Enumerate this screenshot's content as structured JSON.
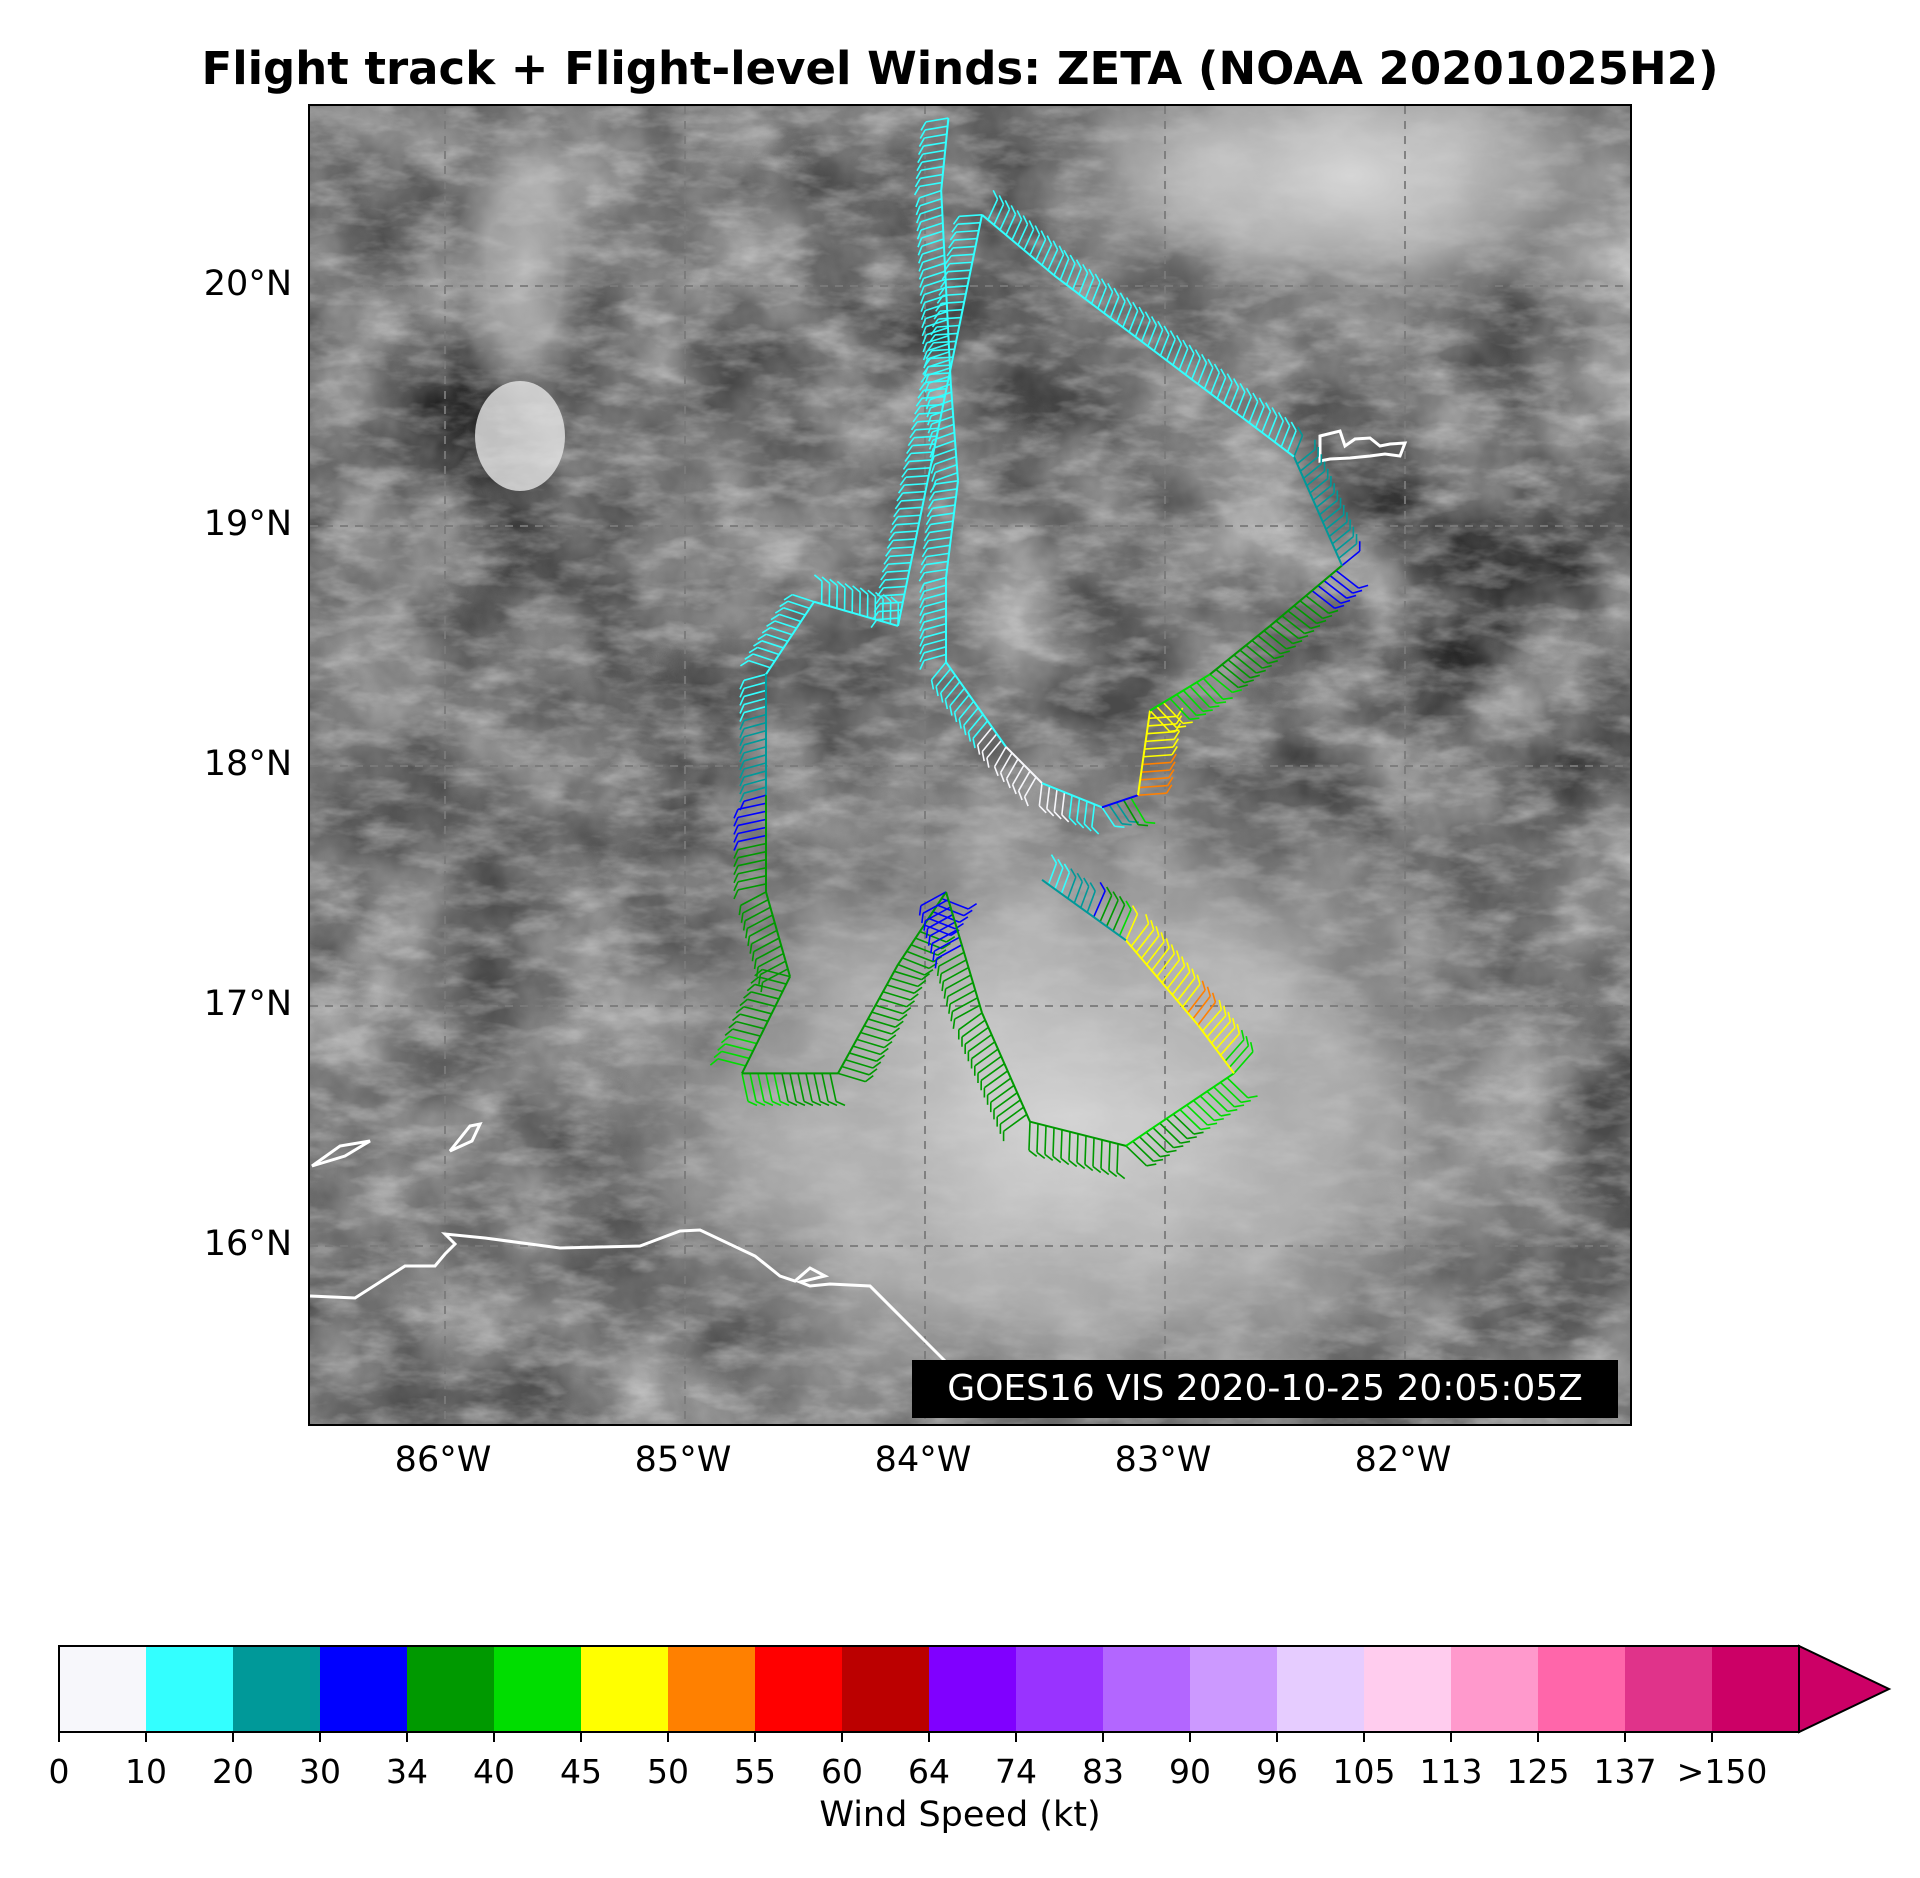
{
  "title": "Flight track + Flight-level Winds: ZETA (NOAA 20201025H2)",
  "map": {
    "lat_labels": [
      "20°N",
      "19°N",
      "18°N",
      "17°N",
      "16°N"
    ],
    "lon_labels": [
      "86°W",
      "85°W",
      "84°W",
      "83°W",
      "82°W"
    ],
    "stamp": "GOES16 VIS 2020-10-25 20:05:05Z",
    "coastline_color": "#ffffff"
  },
  "colorbar": {
    "label": "Wind Speed (kt)",
    "ticks": [
      "0",
      "10",
      "20",
      "30",
      "34",
      "40",
      "45",
      "50",
      "55",
      "60",
      "64",
      "74",
      "83",
      "90",
      "96",
      "105",
      "113",
      "125",
      "137",
      ">150"
    ],
    "colors": [
      "#f7f7fb",
      "#33ffff",
      "#009999",
      "#0000ff",
      "#009900",
      "#00dd00",
      "#ffff00",
      "#ff8000",
      "#ff0000",
      "#bb0000",
      "#8000ff",
      "#9933ff",
      "#b366ff",
      "#cc99ff",
      "#e6ccff",
      "#ffccee",
      "#ff99cc",
      "#ff66aa",
      "#e0338a",
      "#cc0066"
    ],
    "extend_color": "#cc0066"
  },
  "chart_data": {
    "type": "scatter",
    "title": "Flight track + Flight-level Winds: ZETA (NOAA 20201025H2)",
    "xlabel": "",
    "ylabel": "",
    "xlim": [
      -86.5,
      -81.0
    ],
    "ylim": [
      15.3,
      20.75
    ],
    "series": [
      {
        "name": "",
        "unit": "kt",
        "points": [
          {
            "lon": -83.84,
            "lat": 20.7,
            "wind": 15
          },
          {
            "lon": -83.87,
            "lat": 20.4,
            "wind": 15
          },
          {
            "lon": -83.85,
            "lat": 20.0,
            "wind": 15
          },
          {
            "lon": -83.83,
            "lat": 19.6,
            "wind": 15
          },
          {
            "lon": -83.8,
            "lat": 19.2,
            "wind": 18
          },
          {
            "lon": -83.85,
            "lat": 18.8,
            "wind": 15
          },
          {
            "lon": -83.85,
            "lat": 18.45,
            "wind": 15
          },
          {
            "lon": -83.6,
            "lat": 18.1,
            "wind": 8
          },
          {
            "lon": -83.45,
            "lat": 17.95,
            "wind": 5
          },
          {
            "lon": -83.2,
            "lat": 17.85,
            "wind": 15
          },
          {
            "lon": -83.05,
            "lat": 17.9,
            "wind": 52
          },
          {
            "lon": -83.0,
            "lat": 18.25,
            "wind": 47
          },
          {
            "lon": -82.75,
            "lat": 18.4,
            "wind": 40
          },
          {
            "lon": -82.5,
            "lat": 18.6,
            "wind": 38
          },
          {
            "lon": -82.2,
            "lat": 18.85,
            "wind": 30
          },
          {
            "lon": -82.4,
            "lat": 19.3,
            "wind": 20
          },
          {
            "lon": -82.8,
            "lat": 19.6,
            "wind": 15
          },
          {
            "lon": -83.4,
            "lat": 20.05,
            "wind": 15
          },
          {
            "lon": -83.7,
            "lat": 20.3,
            "wind": 15
          },
          {
            "lon": -84.05,
            "lat": 18.6,
            "wind": 15
          },
          {
            "lon": -84.4,
            "lat": 18.7,
            "wind": 15
          },
          {
            "lon": -84.6,
            "lat": 18.4,
            "wind": 15
          },
          {
            "lon": -84.6,
            "lat": 17.9,
            "wind": 30
          },
          {
            "lon": -84.6,
            "lat": 17.5,
            "wind": 38
          },
          {
            "lon": -84.5,
            "lat": 17.15,
            "wind": 38
          },
          {
            "lon": -84.7,
            "lat": 16.75,
            "wind": 41
          },
          {
            "lon": -84.3,
            "lat": 16.75,
            "wind": 38
          },
          {
            "lon": -84.05,
            "lat": 17.2,
            "wind": 36
          },
          {
            "lon": -83.85,
            "lat": 17.5,
            "wind": 32
          },
          {
            "lon": -83.7,
            "lat": 17.0,
            "wind": 36
          },
          {
            "lon": -83.5,
            "lat": 16.55,
            "wind": 38
          },
          {
            "lon": -83.1,
            "lat": 16.45,
            "wind": 38
          },
          {
            "lon": -82.65,
            "lat": 16.75,
            "wind": 42
          },
          {
            "lon": -82.8,
            "lat": 16.95,
            "wind": 51
          },
          {
            "lon": -83.1,
            "lat": 17.3,
            "wind": 45
          },
          {
            "lon": -83.45,
            "lat": 17.55,
            "wind": 10
          }
        ]
      }
    ]
  }
}
